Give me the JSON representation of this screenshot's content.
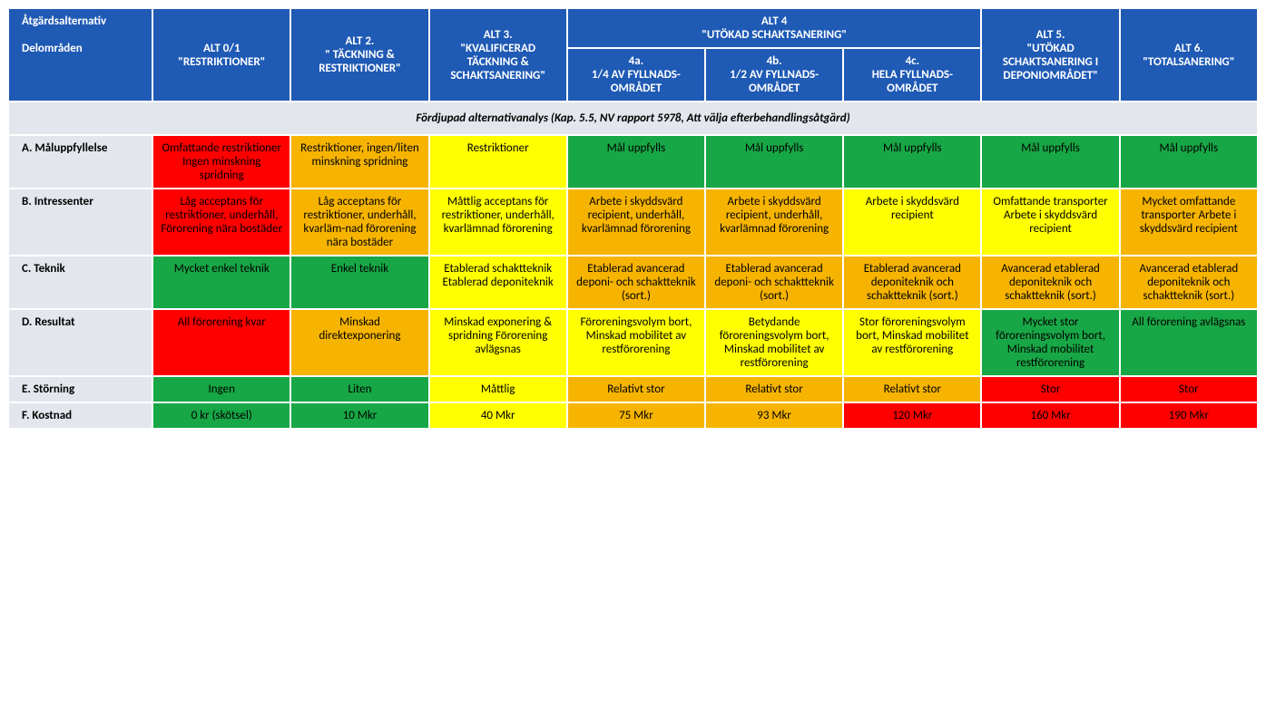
{
  "colors": {
    "header_bg": "#1f5ab5",
    "header_fg": "#ffffff",
    "label_bg": "#e3e6ec",
    "green": "#18a746",
    "yellow": "#ffff00",
    "orange": "#f6b400",
    "red": "#ff0000",
    "border": "#ffffff"
  },
  "corner": {
    "line1": "Åtgärdsalternativ",
    "line2": "Delområden"
  },
  "headers": {
    "alt01": {
      "l1": "ALT  0/1",
      "l2": "\"RESTRIKTIONER\""
    },
    "alt2": {
      "l1": "ALT 2.",
      "l2": "\" TÄCKNING & RESTRIKTIONER\""
    },
    "alt3": {
      "l1": "ALT 3.",
      "l2": "\"KVALIFICERAD TÄCKNING & SCHAKTSANERING\""
    },
    "alt4": {
      "l1": "ALT 4",
      "l2": "\"UTÖKAD SCHAKTSANERING\""
    },
    "alt4a": {
      "l1": "4a.",
      "l2": "1/4 AV FYLLNADS-OMRÅDET"
    },
    "alt4b": {
      "l1": "4b.",
      "l2": "1/2 AV FYLLNADS-OMRÅDET"
    },
    "alt4c": {
      "l1": "4c.",
      "l2": "HELA FYLLNADS-OMRÅDET"
    },
    "alt5": {
      "l1": "ALT 5.",
      "l2": "\"UTÖKAD SCHAKTSANERING I DEPONIOMRÅDET\""
    },
    "alt6": {
      "l1": "ALT 6.",
      "l2": "\"TOTALSANERING\""
    }
  },
  "section_title": "Fördjupad alternativanalys (Kap. 5.5, NV rapport 5978, Att välja efterbehandlingsåtgärd)",
  "rows": {
    "A": {
      "label": "A. Måluppfyllelse",
      "cells": [
        {
          "c": "red",
          "t": "Omfattande restriktioner Ingen minskning spridning"
        },
        {
          "c": "orange",
          "t": "Restriktioner, ingen/liten minskning spridning"
        },
        {
          "c": "yellow",
          "t": "Restriktioner"
        },
        {
          "c": "green",
          "t": "Mål uppfylls"
        },
        {
          "c": "green",
          "t": "Mål uppfylls"
        },
        {
          "c": "green",
          "t": "Mål uppfylls"
        },
        {
          "c": "green",
          "t": "Mål uppfylls"
        },
        {
          "c": "green",
          "t": "Mål uppfylls"
        }
      ]
    },
    "B": {
      "label": "B. Intressenter",
      "cells": [
        {
          "c": "red",
          "t": "Låg acceptans för restriktioner, underhåll, Förorening nära bostäder"
        },
        {
          "c": "orange",
          "t": "Låg acceptans för restriktioner, underhåll, kvarläm-nad förorening nära bostäder"
        },
        {
          "c": "yellow",
          "t": "Måttlig acceptans för restriktioner, underhåll, kvarlämnad förorening"
        },
        {
          "c": "orange",
          "t": "Arbete i skyddsvärd recipient, underhåll, kvarlämnad förorening"
        },
        {
          "c": "orange",
          "t": "Arbete i skyddsvärd recipient, underhåll, kvarlämnad förorening"
        },
        {
          "c": "yellow",
          "t": "Arbete i skyddsvärd recipient"
        },
        {
          "c": "yellow",
          "t": "Omfattande transporter Arbete i skyddsvärd recipient"
        },
        {
          "c": "orange",
          "t": "Mycket omfattande transporter Arbete i skyddsvärd recipient"
        }
      ]
    },
    "C": {
      "label": "C. Teknik",
      "cells": [
        {
          "c": "green",
          "t": "Mycket enkel teknik"
        },
        {
          "c": "green",
          "t": "Enkel teknik"
        },
        {
          "c": "yellow",
          "t": "Etablerad schaktteknik Etablerad deponiteknik"
        },
        {
          "c": "orange",
          "t": "Etablerad avancerad deponi- och schaktteknik (sort.)"
        },
        {
          "c": "orange",
          "t": "Etablerad avancerad deponi- och schaktteknik (sort.)"
        },
        {
          "c": "orange",
          "t": "Etablerad avancerad deponiteknik och schaktteknik (sort.)"
        },
        {
          "c": "orange",
          "t": "Avancerad etablerad deponiteknik och schaktteknik (sort.)"
        },
        {
          "c": "orange",
          "t": "Avancerad etablerad deponiteknik och schaktteknik (sort.)"
        }
      ]
    },
    "D": {
      "label": "D. Resultat",
      "cells": [
        {
          "c": "red",
          "t": "All förorening kvar"
        },
        {
          "c": "orange",
          "t": "Minskad direktexponering"
        },
        {
          "c": "yellow",
          "t": "Minskad exponering & spridning Förorening avlägsnas"
        },
        {
          "c": "yellow",
          "t": "Föroreningsvolym bort, Minskad mobilitet av restförorening"
        },
        {
          "c": "yellow",
          "t": "Betydande föroreningsvolym bort, Minskad mobilitet av restförorening"
        },
        {
          "c": "yellow",
          "t": "Stor föroreningsvolym bort, Minskad mobilitet av restförorening"
        },
        {
          "c": "green",
          "t": "Mycket stor föroreningsvolym bort, Minskad mobilitet restförorening"
        },
        {
          "c": "green",
          "t": "All förorening avlägsnas"
        }
      ]
    },
    "E": {
      "label": "E. Störning",
      "cells": [
        {
          "c": "green",
          "t": "Ingen"
        },
        {
          "c": "green",
          "t": "Liten"
        },
        {
          "c": "yellow",
          "t": "Måttlig"
        },
        {
          "c": "orange",
          "t": "Relativt stor"
        },
        {
          "c": "orange",
          "t": "Relativt stor"
        },
        {
          "c": "orange",
          "t": "Relativt stor"
        },
        {
          "c": "red",
          "t": "Stor"
        },
        {
          "c": "red",
          "t": "Stor"
        }
      ]
    },
    "F": {
      "label": "F. Kostnad",
      "cells": [
        {
          "c": "green",
          "t": "0 kr (skötsel)"
        },
        {
          "c": "green",
          "t": "10 Mkr"
        },
        {
          "c": "yellow",
          "t": "40 Mkr"
        },
        {
          "c": "orange",
          "t": "75 Mkr"
        },
        {
          "c": "orange",
          "t": "93 Mkr"
        },
        {
          "c": "red",
          "t": "120 Mkr"
        },
        {
          "c": "red",
          "t": "160 Mkr"
        },
        {
          "c": "red",
          "t": "190 Mkr"
        }
      ]
    }
  },
  "row_order": [
    "A",
    "B",
    "C",
    "D",
    "E",
    "F"
  ]
}
